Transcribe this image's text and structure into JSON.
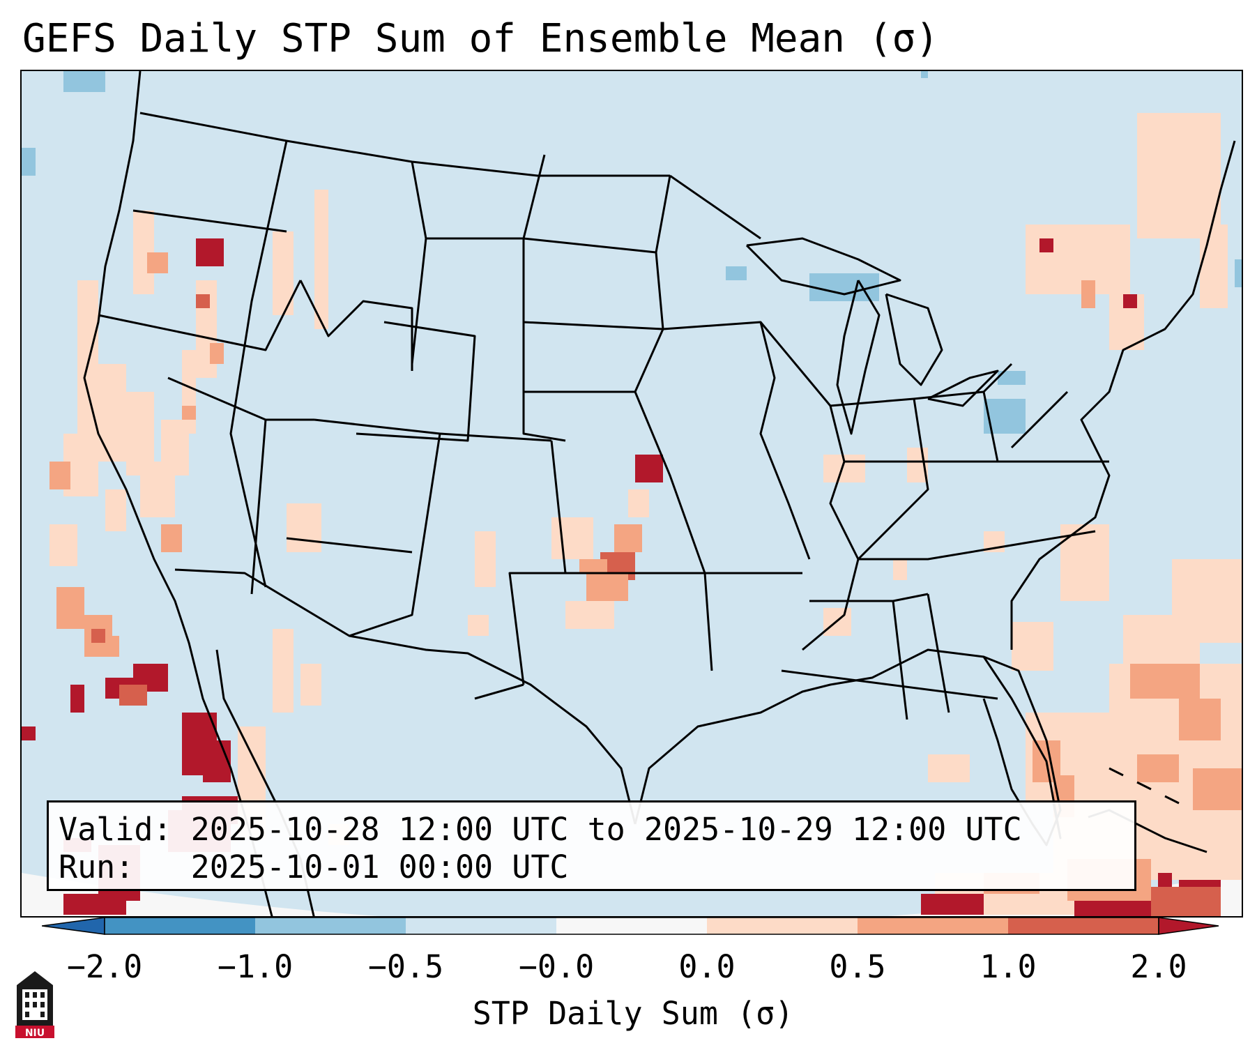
{
  "title": "GEFS Daily STP Sum of Ensemble Mean (σ)",
  "info": {
    "valid_label": "Valid:",
    "valid_value": "2025-10-28 12:00 UTC to 2025-10-29 12:00 UTC",
    "run_label": "Run:",
    "run_value": "2025-10-01 00:00 UTC"
  },
  "colorbar": {
    "label": "STP Daily Sum (σ)",
    "ticks": [
      "−2.0",
      "−1.0",
      "−0.5",
      "−0.0",
      "0.0",
      "0.5",
      "1.0",
      "2.0"
    ],
    "colors": [
      "#2166ac",
      "#4393c3",
      "#92c5de",
      "#d1e5f0",
      "#f7f7f7",
      "#fddbc7",
      "#f4a582",
      "#d6604d",
      "#b2182b"
    ]
  },
  "logo": {
    "text": "NIU",
    "name": "Northern Illinois University"
  },
  "map": {
    "background_bin": "−0.5 to −0.0",
    "ocean_edge_color": "#f7f7f7",
    "state_line_color": "#000000"
  }
}
